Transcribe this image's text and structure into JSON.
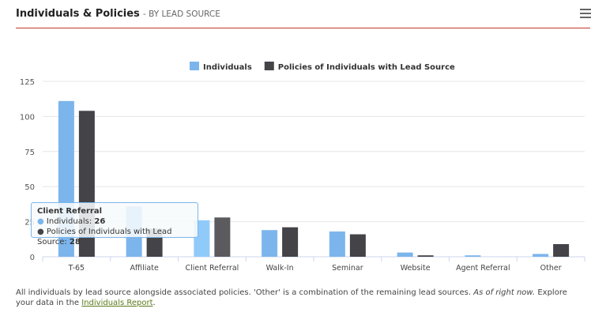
{
  "header": {
    "title": "Individuals & Policies",
    "subtitle": "- BY LEAD SOURCE"
  },
  "chart_data": {
    "type": "bar",
    "categories": [
      "T-65",
      "Affiliate",
      "Client Referral",
      "Walk-In",
      "Seminar",
      "Website",
      "Agent Referral",
      "Other"
    ],
    "series": [
      {
        "name": "Individuals",
        "color": "#7cb5ec",
        "values": [
          111,
          36,
          26,
          19,
          18,
          3,
          1,
          2
        ]
      },
      {
        "name": "Policies of Individuals with Lead Source",
        "color": "#434348",
        "values": [
          104,
          20,
          28,
          21,
          16,
          1,
          0,
          9
        ]
      }
    ],
    "yticks": [
      0,
      25,
      50,
      75,
      100,
      125
    ],
    "ylim": [
      0,
      125
    ],
    "legend": "top-center",
    "grid": true
  },
  "tooltip": {
    "title": "Client Referral",
    "line1_label": "Individuals: ",
    "line1_value": "26",
    "line2_label": "Policies of Individuals with Lead Source: ",
    "line2_value": "28"
  },
  "footer": {
    "text": "All individuals by lead source alongside associated policies. 'Other' is a combination of the remaining lead sources. ",
    "italic": "As of right now.",
    "text2": " Explore your data in the ",
    "link": "Individuals Report",
    "end": "."
  }
}
